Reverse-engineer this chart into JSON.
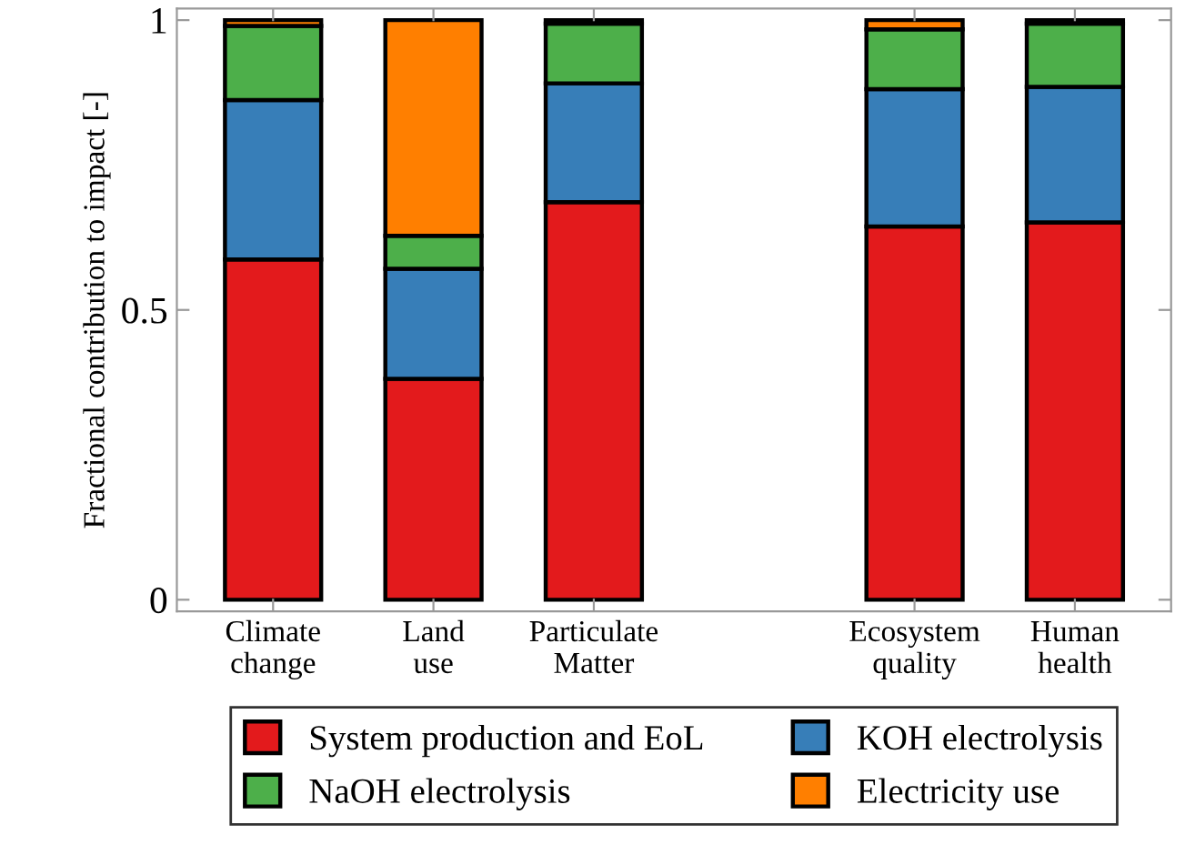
{
  "chart_data": {
    "type": "bar",
    "stacked": true,
    "ylabel": "Fractional contribution to impact [-]",
    "categories": [
      "Climate\nchange",
      "Land\nuse",
      "Particulate\nMatter",
      null,
      "Ecosystem\nquality",
      "Human\nhealth"
    ],
    "series": [
      {
        "name": "System production and EoL",
        "color": "#e31a1c",
        "values": [
          0.587,
          0.381,
          0.686,
          null,
          0.644,
          0.651
        ]
      },
      {
        "name": "KOH electrolysis",
        "color": "#377eb8",
        "values": [
          0.275,
          0.19,
          0.205,
          null,
          0.237,
          0.234
        ]
      },
      {
        "name": "NaOH electrolysis",
        "color": "#4daf4a",
        "values": [
          0.128,
          0.057,
          0.103,
          null,
          0.103,
          0.109
        ]
      },
      {
        "name": "Electricity use",
        "color": "#ff7f00",
        "values": [
          0.01,
          0.372,
          0.006,
          null,
          0.016,
          0.006
        ]
      }
    ],
    "ylim": [
      -0.02,
      1.02
    ],
    "yticks": [
      0,
      0.5,
      1
    ],
    "grid": false,
    "legend": "bottom"
  }
}
